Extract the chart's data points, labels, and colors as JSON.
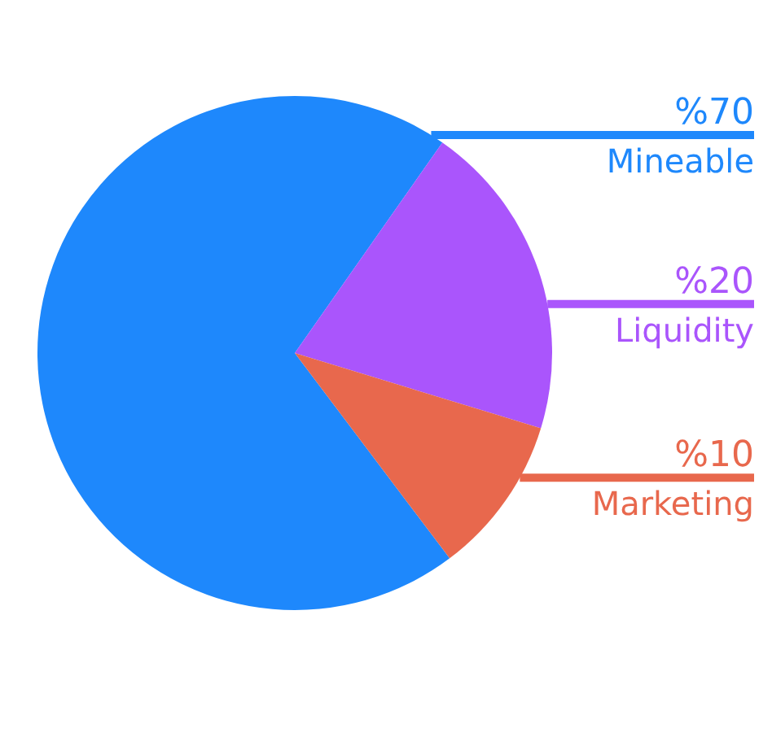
{
  "chart_data": {
    "type": "pie",
    "categories": [
      "Mineable",
      "Liquidity",
      "Marketing"
    ],
    "values": [
      70,
      20,
      10
    ],
    "value_labels": [
      "%70",
      "%20",
      "%10"
    ],
    "colors": [
      "#1e88fc",
      "#aa55fc",
      "#e8684d"
    ]
  }
}
